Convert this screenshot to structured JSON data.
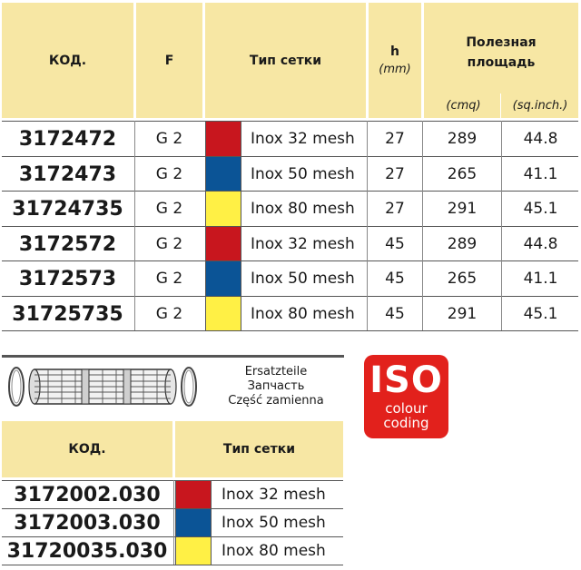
{
  "table1": {
    "headers": {
      "code": "КОД.",
      "f": "F",
      "mesh": "Тип сетки",
      "h": "h",
      "h_unit": "(mm)",
      "area": "Полезная площадь",
      "area_unit1": "(cmq)",
      "area_unit2": "(sq.inch.)"
    },
    "rows": [
      {
        "code": "3172472",
        "f": "G 2",
        "color": "#c8161e",
        "mesh": "Inox 32 mesh",
        "h": "27",
        "cmq": "289",
        "sqin": "44.8"
      },
      {
        "code": "3172473",
        "f": "G 2",
        "color": "#0b5496",
        "mesh": "Inox 50 mesh",
        "h": "27",
        "cmq": "265",
        "sqin": "41.1"
      },
      {
        "code": "31724735",
        "f": "G 2",
        "color": "#fff045",
        "mesh": "Inox 80 mesh",
        "h": "27",
        "cmq": "291",
        "sqin": "45.1"
      },
      {
        "code": "3172572",
        "f": "G 2",
        "color": "#c8161e",
        "mesh": "Inox 32 mesh",
        "h": "45",
        "cmq": "289",
        "sqin": "44.8"
      },
      {
        "code": "3172573",
        "f": "G 2",
        "color": "#0b5496",
        "mesh": "Inox 50 mesh",
        "h": "45",
        "cmq": "265",
        "sqin": "41.1"
      },
      {
        "code": "31725735",
        "f": "G 2",
        "color": "#fff045",
        "mesh": "Inox 80 mesh",
        "h": "45",
        "cmq": "291",
        "sqin": "45.1"
      }
    ]
  },
  "spare": {
    "line1": "Ersatzteile",
    "line2": "Запчасть",
    "line3": "Część zamienna"
  },
  "iso_badge": {
    "title": "ISO",
    "line1": "colour",
    "line2": "coding",
    "color": "#e2211c"
  },
  "table2": {
    "headers": {
      "code": "КОД.",
      "mesh": "Тип сетки"
    },
    "rows": [
      {
        "code": "3172002.030",
        "color": "#c8161e",
        "mesh": "Inox 32 mesh"
      },
      {
        "code": "3172003.030",
        "color": "#0b5496",
        "mesh": "Inox 50 mesh"
      },
      {
        "code": "31720035.030",
        "color": "#fff045",
        "mesh": "Inox 80 mesh"
      }
    ]
  }
}
